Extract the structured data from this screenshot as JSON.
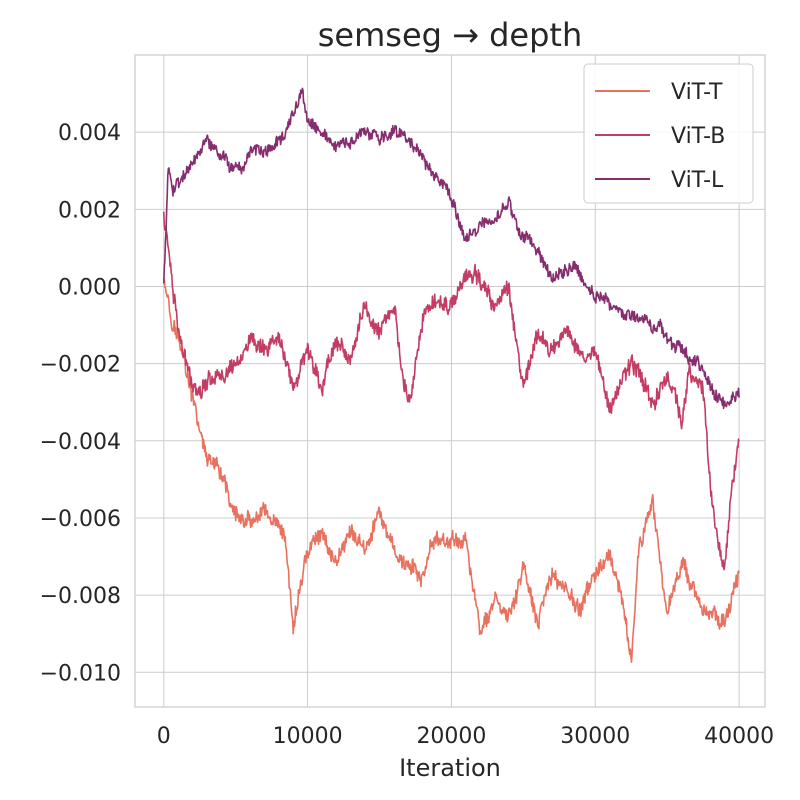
{
  "chart_data": {
    "type": "line",
    "title": "semseg → depth",
    "xlabel": "Iteration",
    "ylabel": "",
    "xlim": [
      -2000,
      41800
    ],
    "ylim": [
      -0.0109,
      0.006
    ],
    "xticks": [
      0,
      10000,
      20000,
      30000,
      40000
    ],
    "xtick_labels": [
      "0",
      "10000",
      "20000",
      "30000",
      "40000"
    ],
    "yticks": [
      0.004,
      0.002,
      0.0,
      -0.002,
      -0.004,
      -0.006,
      -0.008,
      -0.01
    ],
    "ytick_labels": [
      "0.004",
      "0.002",
      "0.000",
      "−0.002",
      "−0.004",
      "−0.006",
      "−0.008",
      "−0.010"
    ],
    "grid": true,
    "legend_position": "top-right",
    "series": [
      {
        "name": "ViT-T",
        "color": "#e8725f",
        "x": [
          0,
          500,
          1000,
          1500,
          2000,
          2500,
          3000,
          4000,
          5000,
          6000,
          7000,
          8000,
          8500,
          9000,
          9500,
          10000,
          11000,
          12000,
          13000,
          14000,
          15000,
          16000,
          17000,
          18000,
          19000,
          20000,
          21000,
          22000,
          23000,
          24000,
          25000,
          26000,
          27000,
          28000,
          29000,
          30000,
          31000,
          32000,
          32500,
          33000,
          34000,
          35000,
          36000,
          37000,
          38000,
          39000,
          40000
        ],
        "y": [
          0.0004,
          -0.0006,
          -0.0012,
          -0.002,
          -0.003,
          -0.0038,
          -0.0045,
          -0.0052,
          -0.006,
          -0.0063,
          -0.0061,
          -0.0068,
          -0.0072,
          -0.0092,
          -0.0079,
          -0.007,
          -0.0065,
          -0.0072,
          -0.0062,
          -0.0068,
          -0.006,
          -0.007,
          -0.0073,
          -0.0076,
          -0.0066,
          -0.0067,
          -0.0065,
          -0.009,
          -0.0081,
          -0.0088,
          -0.0073,
          -0.009,
          -0.0076,
          -0.0078,
          -0.0085,
          -0.0074,
          -0.0073,
          -0.0088,
          -0.0098,
          -0.007,
          -0.0059,
          -0.0085,
          -0.007,
          -0.0078,
          -0.0087,
          -0.0085,
          -0.0076
        ],
        "noise": 0.0003
      },
      {
        "name": "ViT-B",
        "color": "#c23c63",
        "x": [
          0,
          500,
          1000,
          1500,
          2000,
          2500,
          3000,
          4000,
          5000,
          6000,
          7000,
          8000,
          9000,
          10000,
          11000,
          12000,
          13000,
          14000,
          15000,
          16000,
          16500,
          17000,
          18000,
          19000,
          20000,
          21000,
          22000,
          23000,
          24000,
          25000,
          26000,
          27000,
          28000,
          29000,
          30000,
          31000,
          32000,
          33000,
          34000,
          35000,
          35500,
          36000,
          36500,
          37000,
          37500,
          38000,
          38500,
          39000,
          39500,
          40000
        ],
        "y": [
          0.0018,
          0.0005,
          -0.001,
          -0.002,
          -0.0025,
          -0.0025,
          -0.0022,
          -0.0021,
          -0.002,
          -0.0012,
          -0.002,
          -0.0015,
          -0.0027,
          -0.0018,
          -0.0025,
          -0.0012,
          -0.0018,
          -0.0005,
          -0.0012,
          -0.0005,
          -0.002,
          -0.003,
          -0.0008,
          -0.0006,
          -0.0004,
          0.0005,
          0.0,
          -0.0006,
          0.0,
          -0.0025,
          -0.0012,
          -0.0018,
          -0.0012,
          -0.0015,
          -0.0018,
          -0.0028,
          -0.002,
          -0.0022,
          -0.003,
          -0.0022,
          -0.0025,
          -0.0036,
          -0.002,
          -0.0025,
          -0.0028,
          -0.005,
          -0.0065,
          -0.0072,
          -0.005,
          -0.004
        ],
        "noise": 0.0003
      },
      {
        "name": "ViT-L",
        "color": "#862d6f",
        "x": [
          0,
          300,
          600,
          1000,
          2000,
          3000,
          4000,
          5000,
          5500,
          6000,
          7000,
          8000,
          9000,
          9600,
          10000,
          11000,
          12000,
          13000,
          14000,
          15000,
          16000,
          17000,
          18000,
          19000,
          20000,
          21000,
          22000,
          23000,
          24000,
          25000,
          26000,
          27000,
          28000,
          29000,
          30000,
          31000,
          32000,
          33000,
          34000,
          35000,
          36000,
          37000,
          38000,
          39000,
          40000
        ],
        "y": [
          0.0,
          0.003,
          0.0026,
          0.0029,
          0.0031,
          0.0037,
          0.0032,
          0.003,
          0.0025,
          0.0032,
          0.0036,
          0.0038,
          0.0043,
          0.005,
          0.0042,
          0.0038,
          0.0035,
          0.0036,
          0.0039,
          0.0037,
          0.0039,
          0.0037,
          0.0033,
          0.0027,
          0.0022,
          0.0012,
          0.0018,
          0.0016,
          0.0021,
          0.0013,
          0.001,
          0.0004,
          0.0006,
          0.0004,
          -0.0002,
          -0.0003,
          -0.0006,
          -0.0008,
          -0.001,
          -0.0013,
          -0.0016,
          -0.002,
          -0.0025,
          -0.003,
          -0.0027
        ],
        "noise": 0.00022
      }
    ]
  }
}
